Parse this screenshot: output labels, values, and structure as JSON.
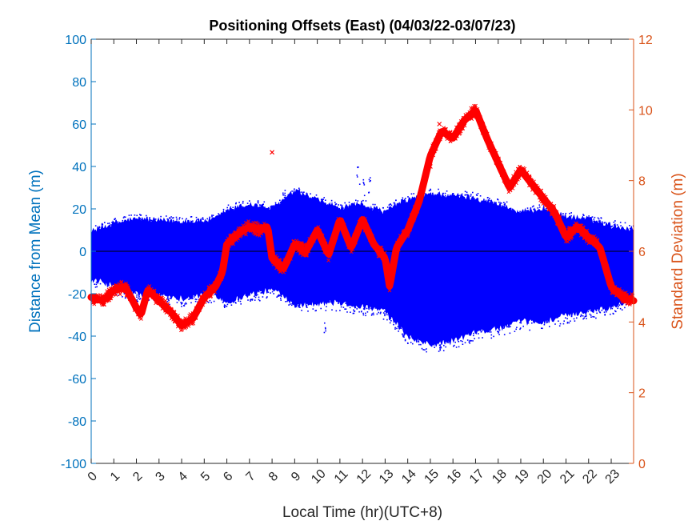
{
  "chart_data": {
    "type": "scatter",
    "title": "Positioning Offsets (East) (04/03/22-03/07/23)",
    "xlabel": "Local Time (hr)(UTC+8)",
    "ylabel_left": "Distance from Mean (m)",
    "ylabel_right": "Standard Deviation (m)",
    "xlim": [
      0,
      23.99
    ],
    "ylim_left": [
      -100,
      100
    ],
    "ylim_right": [
      0,
      12
    ],
    "x_ticks": [
      "0",
      "1",
      "2",
      "3",
      "4",
      "5",
      "6",
      "7",
      "8",
      "9",
      "10",
      "11",
      "12",
      "13",
      "14",
      "15",
      "16",
      "17",
      "18",
      "19",
      "20",
      "21",
      "22",
      "23"
    ],
    "yleft_ticks": [
      "-100",
      "-80",
      "-60",
      "-40",
      "-20",
      "0",
      "20",
      "40",
      "60",
      "80",
      "100"
    ],
    "yright_ticks": [
      "0",
      "2",
      "4",
      "6",
      "8",
      "10",
      "12"
    ],
    "grid": false,
    "colors": {
      "offsets": "#0000FF",
      "std": "#FF0000",
      "left_axis": "#0072BD",
      "right_axis": "#D95319",
      "zero_line": "#000000"
    },
    "series": [
      {
        "axis": "left",
        "marker": "dot",
        "envelope_x": [
          0,
          1,
          2,
          3,
          4,
          5,
          5.5,
          6,
          7,
          8,
          8.5,
          9,
          10,
          11,
          12,
          13,
          13.5,
          14,
          15,
          16,
          17,
          18,
          19,
          20,
          21,
          22,
          23,
          23.99
        ],
        "envelope_upper": [
          9,
          13,
          15,
          14,
          14,
          14,
          15,
          19,
          22,
          20,
          24,
          28,
          24,
          20,
          22,
          18,
          22,
          24,
          27,
          26,
          25,
          22,
          18,
          20,
          16,
          15,
          12,
          10
        ],
        "envelope_lower": [
          -13,
          -16,
          -20,
          -20,
          -22,
          -20,
          -20,
          -24,
          -20,
          -18,
          -20,
          -25,
          -24,
          -24,
          -26,
          -28,
          -34,
          -40,
          -44,
          -42,
          -38,
          -36,
          -33,
          -33,
          -30,
          -28,
          -26,
          -22
        ],
        "outliers": [
          [
            8.5,
            29
          ],
          [
            9.2,
            30
          ],
          [
            11.8,
            40
          ],
          [
            12.0,
            34
          ],
          [
            12.3,
            35
          ],
          [
            12.1,
            -30
          ],
          [
            11.6,
            -28
          ],
          [
            10.3,
            -38
          ],
          [
            13.0,
            -32
          ]
        ]
      },
      {
        "axis": "right",
        "marker": "x",
        "x": [
          0,
          0.5,
          1,
          1.5,
          2,
          2.2,
          2.5,
          3,
          3.5,
          4,
          4.5,
          5,
          5.5,
          5.8,
          6,
          6.5,
          7,
          7.5,
          7.8,
          8,
          8.5,
          9,
          9.5,
          10,
          10.5,
          11,
          11.5,
          12,
          12.5,
          13,
          13.2,
          13.5,
          14,
          14.5,
          15,
          15.5,
          16,
          16.5,
          17,
          17.5,
          18,
          18.5,
          19,
          19.5,
          20,
          20.5,
          21,
          21.5,
          22,
          22.5,
          23,
          23.5,
          23.99
        ],
        "y": [
          4.7,
          4.6,
          4.9,
          5.0,
          4.4,
          4.2,
          4.9,
          4.6,
          4.3,
          3.9,
          4.1,
          4.7,
          5.0,
          5.4,
          6.2,
          6.5,
          6.7,
          6.6,
          6.7,
          5.8,
          5.5,
          6.2,
          6.0,
          6.6,
          5.9,
          6.9,
          6.1,
          6.9,
          6.2,
          5.8,
          5.0,
          6.1,
          6.6,
          7.4,
          8.7,
          9.4,
          9.2,
          9.7,
          10.0,
          9.2,
          8.5,
          7.8,
          8.3,
          7.9,
          7.5,
          7.1,
          6.4,
          6.7,
          6.4,
          6.1,
          5.0,
          4.7,
          4.6
        ],
        "outliers": [
          [
            8.0,
            8.8
          ],
          [
            15.0,
            8.4
          ],
          [
            15.4,
            9.6
          ]
        ]
      }
    ]
  }
}
